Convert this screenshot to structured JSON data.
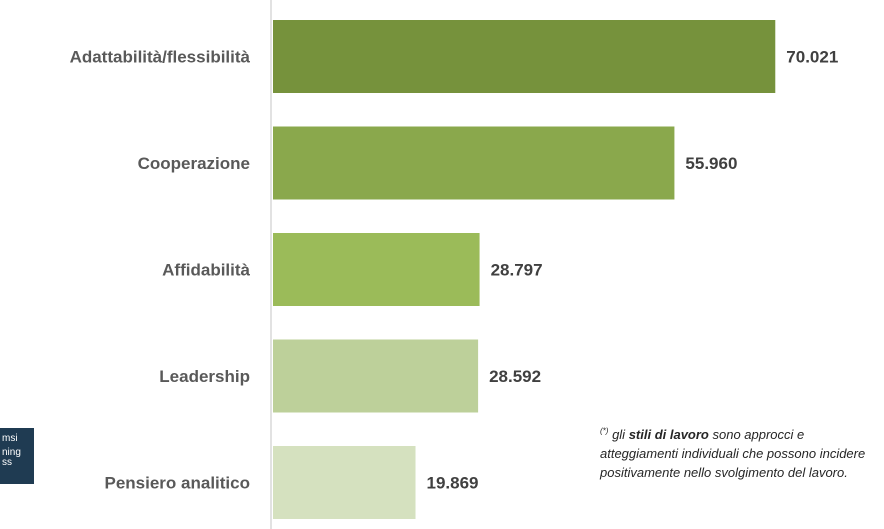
{
  "chart_data": {
    "type": "bar",
    "orientation": "horizontal",
    "categories": [
      "Adattabilità/flessibilità",
      "Cooperazione",
      "Affidabilità",
      "Leadership",
      "Pensiero analitico"
    ],
    "values": [
      70021,
      55960,
      28797,
      28592,
      19869
    ],
    "value_labels": [
      "70.021",
      "55.960",
      "28.797",
      "28.592",
      "19.869"
    ],
    "bar_colors": [
      "#76923c",
      "#8aa84c",
      "#9bbb59",
      "#bdd09a",
      "#d5e1bf"
    ],
    "axis_line_color": "#d9d9d9",
    "xlim": [
      0,
      75000
    ],
    "grid": false
  },
  "footnote": {
    "marker": "(*)",
    "pre": " gli ",
    "bold": "stili di lavoro",
    "post": " sono approcci e atteggiamenti individuali che possono incidere positivamente nello svolgimento del lavoro."
  },
  "logo": {
    "line1": "msi",
    "line2": "ning",
    "line3": "ss",
    "color": "#1f3b52"
  }
}
